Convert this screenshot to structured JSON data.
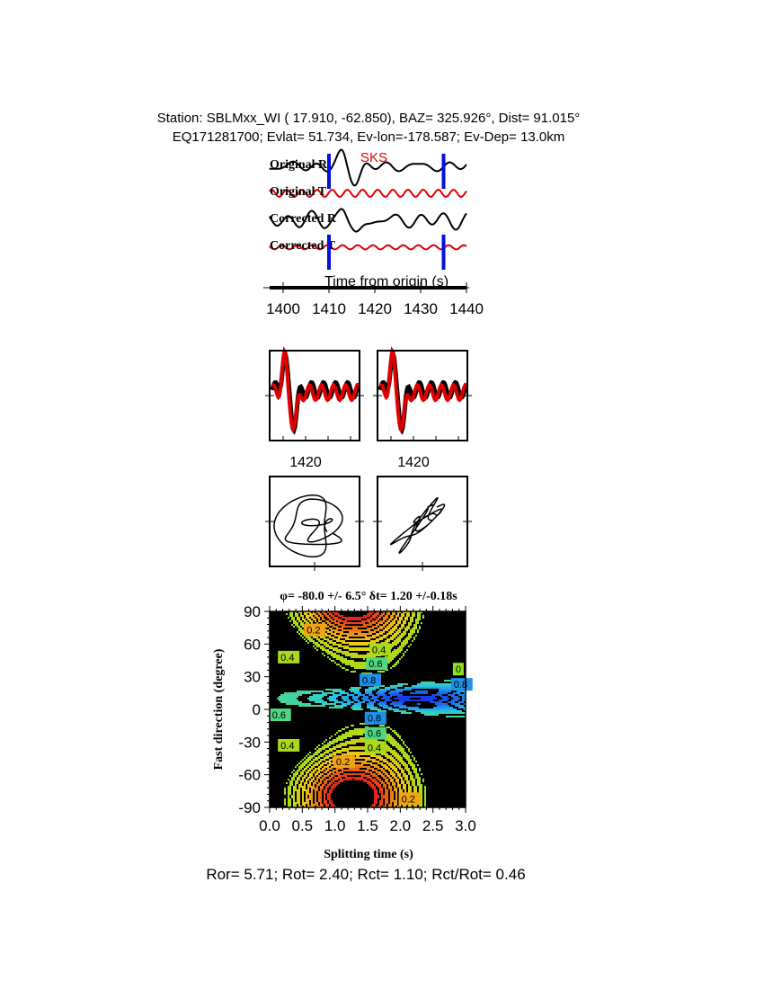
{
  "header": {
    "line1": "Station: SBLMxx_WI (  17.910,  -62.850), BAZ=  325.926°, Dist=   91.015°",
    "line2": "EQ171281700; Evlat=  51.734, Ev-lon=-178.587; Ev-Dep= 13.0km"
  },
  "chart_data": [
    {
      "type": "line",
      "panel": "traces",
      "phase_label": "SKS",
      "xlabel": "Time from origin (s)",
      "xlim": [
        1397,
        1440
      ],
      "xticks": [
        "1400",
        "1410",
        "1420",
        "1430",
        "1440"
      ],
      "window": [
        1410,
        1435
      ],
      "series": [
        {
          "name": "Original R",
          "color": "#000000"
        },
        {
          "name": "Original T",
          "color": "#e00000"
        },
        {
          "name": "Corrected R",
          "color": "#000000"
        },
        {
          "name": "Corrected T",
          "color": "#e00000"
        }
      ],
      "window_color": "#0010e0"
    },
    {
      "type": "line",
      "panel": "waveform-comparison",
      "xticks": [
        "1420",
        "1420"
      ],
      "colors": [
        "#000000",
        "#e00000"
      ]
    },
    {
      "type": "line",
      "panel": "particle-motion",
      "panels": 2
    },
    {
      "type": "heatmap",
      "panel": "energy-grid",
      "title": "φ= -80.0 +/- 6.5° δt= 1.20 +/-0.18s",
      "xlabel": "Splitting time (s)",
      "ylabel": "Fast direction (degree)",
      "xlim": [
        0,
        3
      ],
      "ylim": [
        -90,
        90
      ],
      "xticks": [
        "0.0",
        "0.5",
        "1.0",
        "1.5",
        "2.0",
        "2.5",
        "3.0"
      ],
      "yticks": [
        "90",
        "60",
        "30",
        "0",
        "-30",
        "-60",
        "-90"
      ],
      "best_fit": {
        "dt": 1.2,
        "phi": -80.0
      },
      "contour_labels": [
        {
          "text": "0.2",
          "dt": 0.65,
          "phi": 73
        },
        {
          "text": "0.4",
          "dt": 1.65,
          "phi": 55
        },
        {
          "text": "0.6",
          "dt": 1.6,
          "phi": 42
        },
        {
          "text": "0.8",
          "dt": 1.5,
          "phi": 27
        },
        {
          "text": "0.4",
          "dt": 0.25,
          "phi": 48
        },
        {
          "text": "0.6",
          "dt": 0.12,
          "phi": -5
        },
        {
          "text": "0.8",
          "dt": 1.58,
          "phi": -8
        },
        {
          "text": "0.6",
          "dt": 1.58,
          "phi": -22
        },
        {
          "text": "0.4",
          "dt": 1.58,
          "phi": -35
        },
        {
          "text": "0.4",
          "dt": 0.25,
          "phi": -33
        },
        {
          "text": "0.2",
          "dt": 1.1,
          "phi": -48
        },
        {
          "text": "0.2",
          "dt": 2.1,
          "phi": -82
        },
        {
          "text": "0",
          "dt": 2.93,
          "phi": 37
        },
        {
          "text": "0.8",
          "dt": 2.9,
          "phi": 23
        }
      ]
    }
  ],
  "footer": "Ror= 5.71; Rot= 2.40; Rct= 1.10; Rct/Rot= 0.46"
}
